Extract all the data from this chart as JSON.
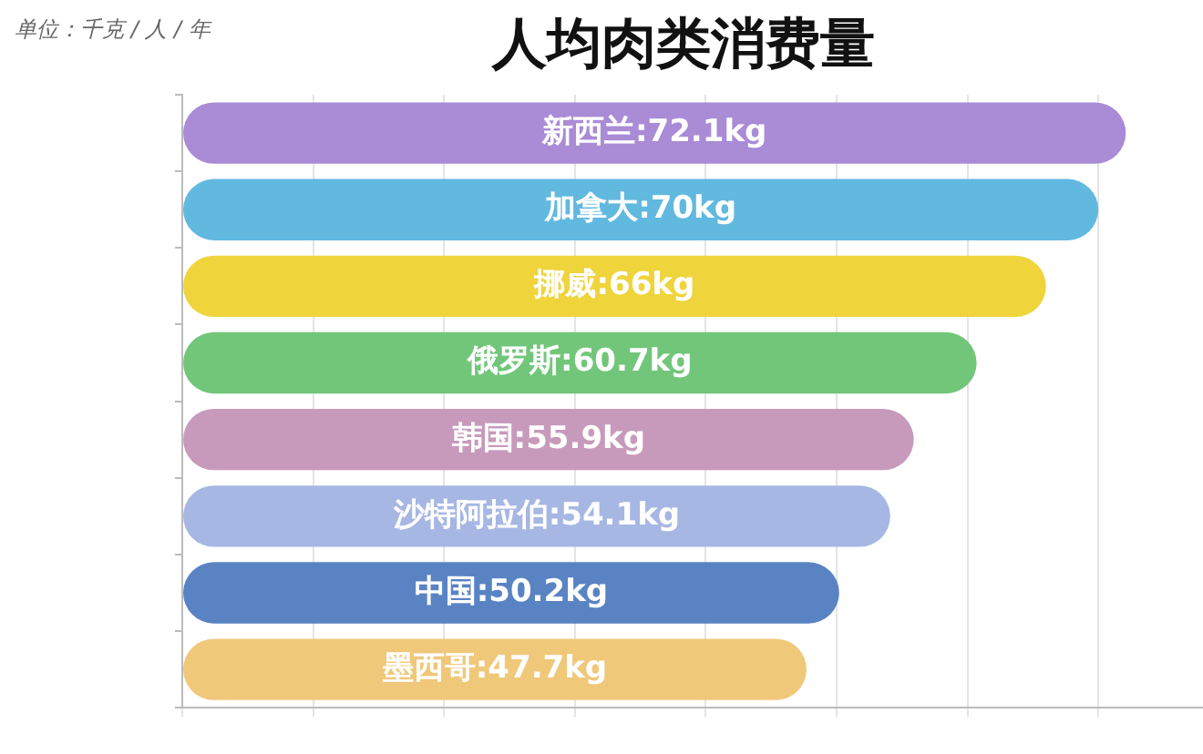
{
  "chart_data": {
    "type": "bar",
    "orientation": "horizontal",
    "title": "人均肉类消费量",
    "subtitle": "单位：千克 / 人 / 年",
    "categories": [
      null,
      null,
      null,
      null,
      null,
      null,
      null,
      null
    ],
    "values": [
      72.1,
      70,
      66,
      60.7,
      55.9,
      54.1,
      50.2,
      47.7
    ],
    "value_labels": [
      "新西兰:72.1kg",
      "加拿大:70kg",
      "挪威:66kg",
      "俄罗斯:60.7kg",
      "韩国:55.9kg",
      "沙特阿拉伯:54.1kg",
      "中国:50.2kg",
      "墨西哥:47.7kg"
    ],
    "colors": [
      "#a98bd6",
      "#62b9e0",
      "#efd43c",
      "#72c67a",
      "#c79abb",
      "#a7b7e3",
      "#5a83c4",
      "#f0c87a"
    ],
    "xlim": [
      0,
      78
    ],
    "xticks": [
      {
        "value": 0,
        "label": null
      },
      {
        "value": 10,
        "label": null
      },
      {
        "value": 20,
        "label": null
      },
      {
        "value": 30,
        "label": null
      },
      {
        "value": 40,
        "label": null
      },
      {
        "value": 50,
        "label": null
      },
      {
        "value": 60,
        "label": null
      },
      {
        "value": 70,
        "label": null
      }
    ],
    "grid": "x",
    "legend": false
  }
}
